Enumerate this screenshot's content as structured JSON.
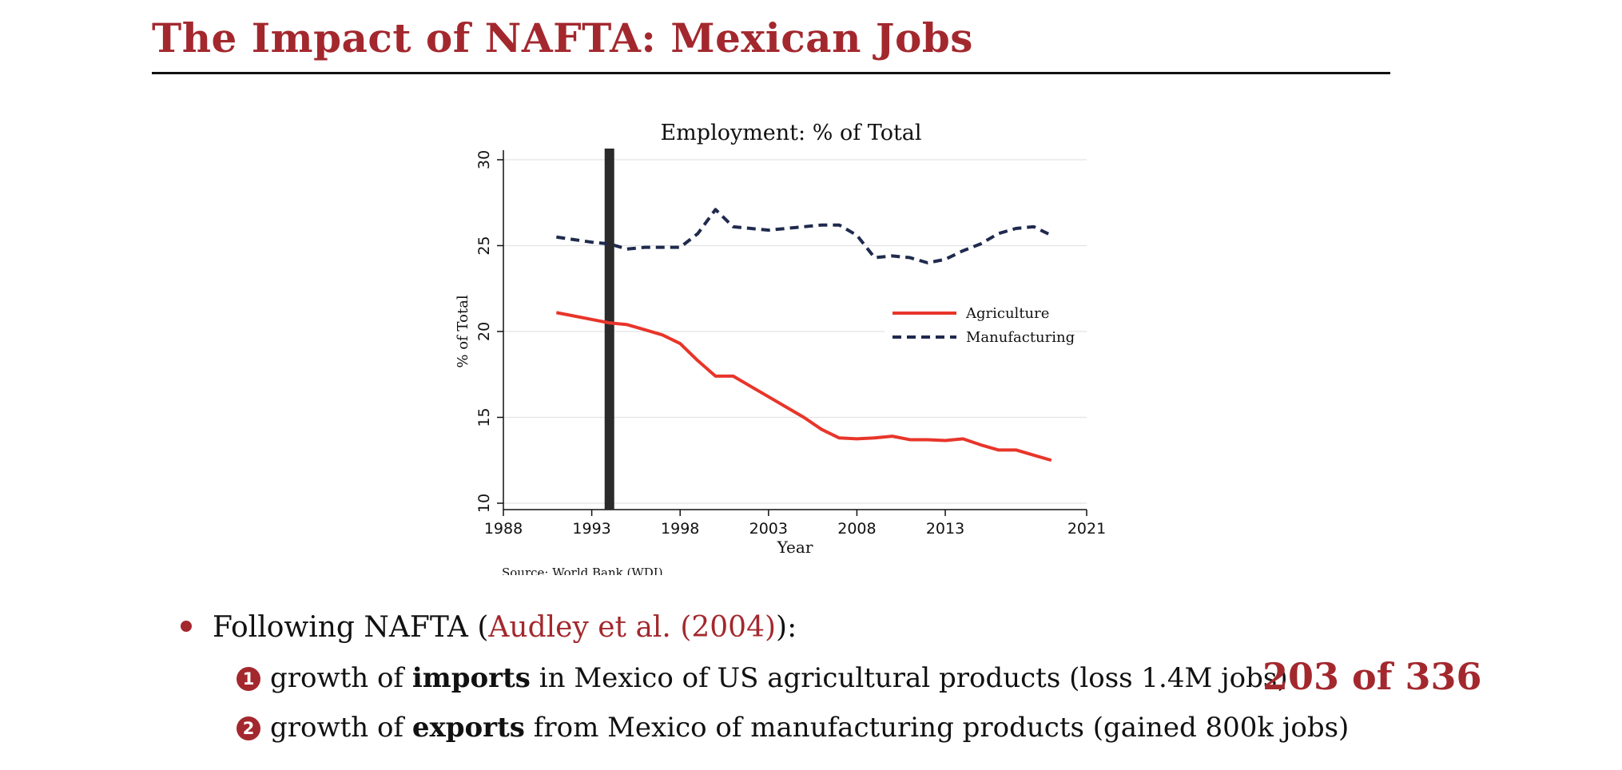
{
  "slide": {
    "title": "The Impact of NAFTA: Mexican Jobs",
    "page_counter": "203 of 336"
  },
  "bullets": {
    "intro_prefix": "Following NAFTA (",
    "citation": "Audley et al. (2004)",
    "intro_suffix": "):",
    "items": [
      {
        "number": "1",
        "pre": "growth of ",
        "bold": "imports",
        "post": " in Mexico of US agricultural products (loss 1.4M jobs)"
      },
      {
        "number": "2",
        "pre": "growth of ",
        "bold": "exports",
        "post": " from Mexico of manufacturing products (gained 800k jobs)"
      }
    ]
  },
  "chart_data": {
    "type": "line",
    "title": "Employment: % of Total",
    "xlabel": "Year",
    "ylabel": "% of Total",
    "source_note": "Source: World Bank (WDI)",
    "xlim": [
      1988,
      2021
    ],
    "ylim": [
      10,
      30
    ],
    "xticks": [
      1988,
      1993,
      1998,
      2003,
      2008,
      2013,
      2021
    ],
    "yticks": [
      10,
      15,
      20,
      25,
      30
    ],
    "grid": true,
    "legend_position": "right",
    "vertical_marker": {
      "x": 1994
    },
    "x": [
      1991,
      1992,
      1993,
      1994,
      1995,
      1996,
      1997,
      1998,
      1999,
      2000,
      2001,
      2002,
      2003,
      2004,
      2005,
      2006,
      2007,
      2008,
      2009,
      2010,
      2011,
      2012,
      2013,
      2014,
      2015,
      2016,
      2017,
      2018,
      2019
    ],
    "series": [
      {
        "name": "Agriculture",
        "color": "#e8352a",
        "style": "solid",
        "values": [
          21.1,
          20.9,
          20.7,
          20.5,
          20.4,
          20.1,
          19.8,
          19.3,
          18.3,
          17.4,
          17.4,
          16.8,
          16.2,
          15.6,
          15.0,
          14.3,
          13.8,
          13.75,
          13.8,
          13.9,
          13.7,
          13.7,
          13.65,
          13.75,
          13.4,
          13.1,
          13.1,
          12.8,
          12.5
        ]
      },
      {
        "name": "Manufacturing",
        "color": "#1f2a4d",
        "style": "dashed",
        "values": [
          25.5,
          25.35,
          25.2,
          25.1,
          24.8,
          24.9,
          24.9,
          24.9,
          25.7,
          27.1,
          26.1,
          26.0,
          25.9,
          26.0,
          26.1,
          26.2,
          26.2,
          25.6,
          24.3,
          24.4,
          24.3,
          24.0,
          24.2,
          24.7,
          25.1,
          25.7,
          26.0,
          26.1,
          25.6
        ]
      }
    ]
  }
}
